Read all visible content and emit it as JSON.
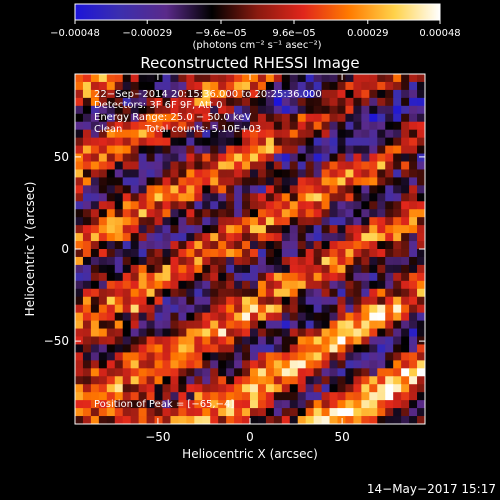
{
  "chart_data": {
    "type": "heatmap",
    "title": "Reconstructed RHESSI Image",
    "xlabel": "Heliocentric X (arcsec)",
    "ylabel": "Heliocentric Y (arcsec)",
    "xlim": [
      -95,
      95
    ],
    "ylim": [
      -95,
      95
    ],
    "x_ticks": [
      -50,
      0,
      50
    ],
    "y_ticks": [
      50,
      0,
      -50
    ],
    "x_tick_labels": [
      "−50",
      "0",
      "50"
    ],
    "y_tick_labels": [
      "50",
      "0",
      "−50"
    ],
    "colorbar": {
      "range": [
        -0.00048,
        0.00048
      ],
      "ticks": [
        -0.00048,
        -0.00029,
        -9.6e-05,
        9.6e-05,
        0.00029,
        0.00048
      ],
      "tick_labels": [
        "−0.00048",
        "−0.00029",
        "−9.6e−05",
        "9.6e−05",
        "0.00029",
        "0.00048"
      ],
      "unit_label": "(photons cm⁻² s⁻¹ asec⁻²)",
      "colors": [
        "#1c14d9",
        "#3c2fae",
        "#5a2a8a",
        "#000000",
        "#8a1a10",
        "#e0261b",
        "#ff7a00",
        "#ffd24a",
        "#ffffff"
      ]
    },
    "annotations": [
      "22−Sep−2014 20:15:36.000 to 20:25:36.000",
      "Detectors: 3F 6F 9F, Att 0",
      "Energy Range: 25.0 − 50.0 keV",
      "Clean",
      "Total counts: 5.10E+03"
    ],
    "peak_label": "Position of Peak = [−65,−4]",
    "peak_position": [
      -65,
      -4
    ],
    "grid": false
  },
  "footer": {
    "timestamp": "14−May−2017 15:17"
  },
  "colors": {
    "background": "#000000",
    "foreground": "#ffffff"
  }
}
